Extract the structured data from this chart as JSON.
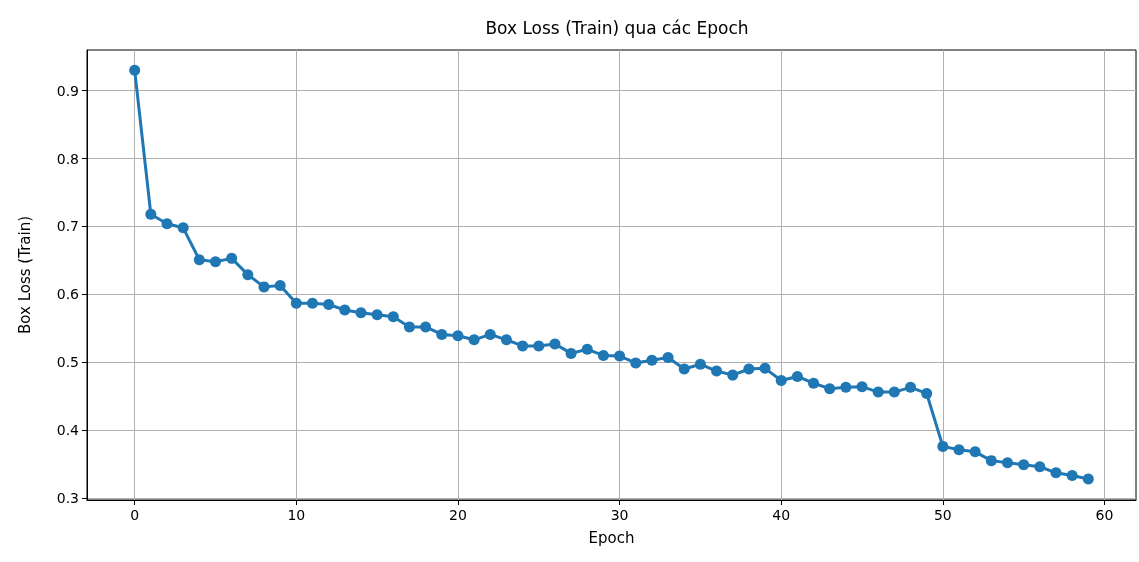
{
  "chart_data": {
    "type": "line",
    "title": "Box Loss (Train) qua các Epoch",
    "xlabel": "Epoch",
    "ylabel": "Box Loss (Train)",
    "x": [
      0,
      1,
      2,
      3,
      4,
      5,
      6,
      7,
      8,
      9,
      10,
      11,
      12,
      13,
      14,
      15,
      16,
      17,
      18,
      19,
      20,
      21,
      22,
      23,
      24,
      25,
      26,
      27,
      28,
      29,
      30,
      31,
      32,
      33,
      34,
      35,
      36,
      37,
      38,
      39,
      40,
      41,
      42,
      43,
      44,
      45,
      46,
      47,
      48,
      49,
      50,
      51,
      52,
      53,
      54,
      55,
      56,
      57,
      58,
      59
    ],
    "series": [
      {
        "color": "#1f77b4",
        "values": [
          0.93,
          0.718,
          0.704,
          0.698,
          0.651,
          0.648,
          0.653,
          0.629,
          0.611,
          0.613,
          0.587,
          0.587,
          0.585,
          0.577,
          0.573,
          0.57,
          0.567,
          0.552,
          0.552,
          0.541,
          0.539,
          0.533,
          0.541,
          0.533,
          0.524,
          0.524,
          0.527,
          0.513,
          0.519,
          0.51,
          0.509,
          0.499,
          0.503,
          0.507,
          0.49,
          0.497,
          0.487,
          0.481,
          0.49,
          0.491,
          0.473,
          0.479,
          0.469,
          0.461,
          0.463,
          0.464,
          0.456,
          0.456,
          0.463,
          0.454,
          0.376,
          0.371,
          0.368,
          0.355,
          0.352,
          0.349,
          0.346,
          0.337,
          0.333,
          0.328
        ]
      }
    ],
    "xlim": [
      -2.95,
      61.95
    ],
    "xticks": [
      0,
      10,
      20,
      30,
      40,
      50,
      60
    ],
    "ylim": [
      0.297,
      0.96
    ],
    "yticks": [
      0.3,
      0.4,
      0.5,
      0.6,
      0.7,
      0.8,
      0.9
    ],
    "grid": true,
    "marker": "circle",
    "line_style": "solid"
  }
}
